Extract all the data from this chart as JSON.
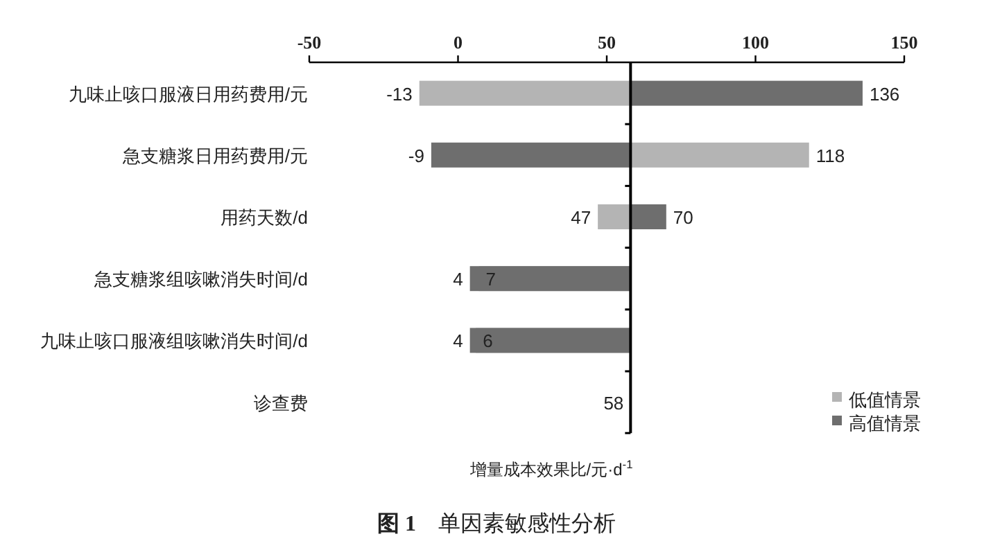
{
  "chart_data": {
    "type": "bar",
    "orientation": "horizontal",
    "title": "**图 1**　单因素敏感性分析",
    "xlabel": "增量成本效果比/元·d$^{-1}$",
    "categories": [
      "九味止咳口服液日用药费用/元",
      "急支糖浆日用药费用/元",
      "用药天数/d",
      "急支糖浆组咳嗽消失时间/d",
      "九味止咳口服液组咳嗽消失时间/d",
      "诊查费"
    ],
    "series": [
      {
        "name": "低值情景",
        "color": "#b4b4b4",
        "base": [
          58,
          58,
          58,
          58,
          58,
          null
        ],
        "values": [
          -71,
          60,
          -11,
          -51,
          -52,
          null
        ],
        "value_labels": [
          "-13",
          "118",
          "47",
          "7",
          "6",
          null
        ]
      },
      {
        "name": "高值情景",
        "color": "#6e6e6e",
        "base": [
          58,
          58,
          58,
          58,
          58,
          null
        ],
        "values": [
          78,
          -67,
          12,
          -54,
          -54,
          null
        ],
        "value_labels": [
          "136",
          "-9",
          "70",
          "4",
          "4",
          null
        ]
      }
    ],
    "annotations": [
      {
        "text": "58",
        "x": 58,
        "y": "诊查费"
      }
    ],
    "ref_lines": [
      {
        "axis": "x",
        "value": 58,
        "color": "#000000"
      }
    ],
    "xlim": [
      -50,
      150
    ],
    "xticks": [
      -50,
      0,
      50,
      100,
      150
    ],
    "legend": "bottom right"
  }
}
